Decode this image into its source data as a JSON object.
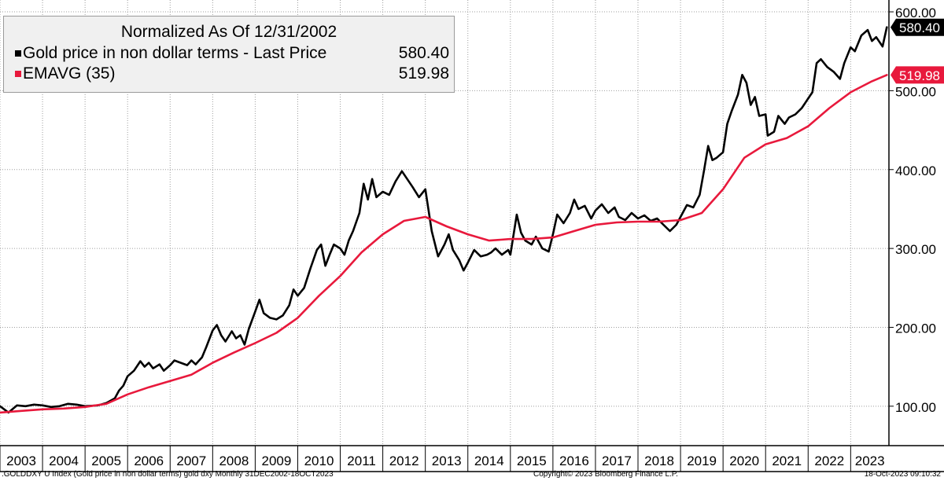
{
  "legend": {
    "title": "Normalized As Of 12/31/2002",
    "entries": [
      {
        "label": "Gold price in non dollar terms - Last Price",
        "value": "580.40",
        "color": "#000000"
      },
      {
        "label": "EMAVG (35)",
        "value": "519.98",
        "color": "#e8193c"
      }
    ]
  },
  "footer": {
    "left": ".GOLDDXY U Index (Gold price in non dollar terms) gold dxy  Monthly 31DEC2002-18OCT2023",
    "center": "Copyright© 2023 Bloomberg Finance L.P.",
    "right": "18-Oct-2023 09:10:32"
  },
  "chart_data": {
    "type": "line",
    "title": "Normalized As Of 12/31/2002",
    "xlabel": "",
    "ylabel": "",
    "x_ticks": [
      "2003",
      "2004",
      "2005",
      "2006",
      "2007",
      "2008",
      "2009",
      "2010",
      "2011",
      "2012",
      "2013",
      "2014",
      "2015",
      "2016",
      "2017",
      "2018",
      "2019",
      "2020",
      "2021",
      "2022",
      "2023"
    ],
    "y_ticks": [
      "100.00",
      "200.00",
      "300.00",
      "400.00",
      "500.00",
      "600.00"
    ],
    "ylim": [
      50,
      615
    ],
    "xlim": [
      2003.0,
      2023.9
    ],
    "grid": true,
    "legend_position": "top-left",
    "last_value_labels": [
      {
        "series": "Gold price in non dollar terms - Last Price",
        "text": "580.40",
        "value": 580.4,
        "bg": "#000000",
        "fg": "#ffffff"
      },
      {
        "series": "EMAVG (35)",
        "text": "519.98",
        "value": 519.98,
        "bg": "#e8193c",
        "fg": "#ffffff"
      }
    ],
    "series": [
      {
        "name": "Gold price in non dollar terms - Last Price",
        "color": "#000000",
        "points": [
          [
            2003.0,
            100
          ],
          [
            2003.2,
            92
          ],
          [
            2003.4,
            101
          ],
          [
            2003.6,
            100
          ],
          [
            2003.8,
            102
          ],
          [
            2004.0,
            101
          ],
          [
            2004.2,
            99
          ],
          [
            2004.4,
            100
          ],
          [
            2004.6,
            103
          ],
          [
            2004.8,
            102
          ],
          [
            2005.0,
            100
          ],
          [
            2005.3,
            101
          ],
          [
            2005.5,
            104
          ],
          [
            2005.7,
            110
          ],
          [
            2005.8,
            120
          ],
          [
            2005.9,
            126
          ],
          [
            2006.0,
            138
          ],
          [
            2006.15,
            145
          ],
          [
            2006.3,
            157
          ],
          [
            2006.4,
            150
          ],
          [
            2006.5,
            155
          ],
          [
            2006.6,
            148
          ],
          [
            2006.75,
            153
          ],
          [
            2006.85,
            145
          ],
          [
            2007.0,
            152
          ],
          [
            2007.1,
            158
          ],
          [
            2007.25,
            155
          ],
          [
            2007.4,
            152
          ],
          [
            2007.5,
            158
          ],
          [
            2007.6,
            153
          ],
          [
            2007.75,
            162
          ],
          [
            2007.85,
            175
          ],
          [
            2008.0,
            196
          ],
          [
            2008.1,
            203
          ],
          [
            2008.2,
            190
          ],
          [
            2008.3,
            182
          ],
          [
            2008.45,
            195
          ],
          [
            2008.55,
            186
          ],
          [
            2008.65,
            190
          ],
          [
            2008.75,
            178
          ],
          [
            2008.85,
            198
          ],
          [
            2009.0,
            220
          ],
          [
            2009.1,
            235
          ],
          [
            2009.2,
            218
          ],
          [
            2009.35,
            212
          ],
          [
            2009.5,
            210
          ],
          [
            2009.65,
            215
          ],
          [
            2009.8,
            228
          ],
          [
            2009.9,
            248
          ],
          [
            2010.0,
            240
          ],
          [
            2010.15,
            250
          ],
          [
            2010.3,
            275
          ],
          [
            2010.45,
            298
          ],
          [
            2010.55,
            305
          ],
          [
            2010.65,
            278
          ],
          [
            2010.75,
            292
          ],
          [
            2010.85,
            305
          ],
          [
            2011.0,
            300
          ],
          [
            2011.1,
            292
          ],
          [
            2011.2,
            310
          ],
          [
            2011.3,
            322
          ],
          [
            2011.45,
            345
          ],
          [
            2011.55,
            382
          ],
          [
            2011.65,
            362
          ],
          [
            2011.75,
            388
          ],
          [
            2011.85,
            365
          ],
          [
            2012.0,
            372
          ],
          [
            2012.15,
            368
          ],
          [
            2012.3,
            385
          ],
          [
            2012.45,
            398
          ],
          [
            2012.55,
            390
          ],
          [
            2012.7,
            378
          ],
          [
            2012.85,
            365
          ],
          [
            2013.0,
            375
          ],
          [
            2013.15,
            322
          ],
          [
            2013.3,
            290
          ],
          [
            2013.45,
            305
          ],
          [
            2013.55,
            318
          ],
          [
            2013.65,
            298
          ],
          [
            2013.8,
            285
          ],
          [
            2013.9,
            272
          ],
          [
            2014.0,
            282
          ],
          [
            2014.15,
            298
          ],
          [
            2014.3,
            290
          ],
          [
            2014.45,
            292
          ],
          [
            2014.55,
            295
          ],
          [
            2014.65,
            300
          ],
          [
            2014.8,
            292
          ],
          [
            2014.95,
            298
          ],
          [
            2015.0,
            292
          ],
          [
            2015.15,
            343
          ],
          [
            2015.25,
            320
          ],
          [
            2015.35,
            310
          ],
          [
            2015.5,
            305
          ],
          [
            2015.6,
            315
          ],
          [
            2015.75,
            300
          ],
          [
            2015.9,
            296
          ],
          [
            2016.0,
            318
          ],
          [
            2016.1,
            343
          ],
          [
            2016.25,
            332
          ],
          [
            2016.4,
            345
          ],
          [
            2016.5,
            362
          ],
          [
            2016.6,
            350
          ],
          [
            2016.75,
            354
          ],
          [
            2016.9,
            338
          ],
          [
            2017.0,
            348
          ],
          [
            2017.15,
            356
          ],
          [
            2017.3,
            345
          ],
          [
            2017.45,
            352
          ],
          [
            2017.55,
            340
          ],
          [
            2017.7,
            336
          ],
          [
            2017.85,
            345
          ],
          [
            2018.0,
            338
          ],
          [
            2018.15,
            342
          ],
          [
            2018.3,
            335
          ],
          [
            2018.45,
            338
          ],
          [
            2018.6,
            330
          ],
          [
            2018.75,
            322
          ],
          [
            2018.9,
            330
          ],
          [
            2019.0,
            340
          ],
          [
            2019.15,
            355
          ],
          [
            2019.3,
            352
          ],
          [
            2019.45,
            368
          ],
          [
            2019.55,
            398
          ],
          [
            2019.65,
            430
          ],
          [
            2019.75,
            412
          ],
          [
            2019.85,
            415
          ],
          [
            2020.0,
            422
          ],
          [
            2020.1,
            458
          ],
          [
            2020.2,
            474
          ],
          [
            2020.35,
            495
          ],
          [
            2020.45,
            520
          ],
          [
            2020.55,
            510
          ],
          [
            2020.65,
            482
          ],
          [
            2020.75,
            492
          ],
          [
            2020.85,
            468
          ],
          [
            2021.0,
            470
          ],
          [
            2021.05,
            443
          ],
          [
            2021.2,
            448
          ],
          [
            2021.3,
            468
          ],
          [
            2021.45,
            458
          ],
          [
            2021.55,
            466
          ],
          [
            2021.7,
            470
          ],
          [
            2021.85,
            478
          ],
          [
            2022.0,
            490
          ],
          [
            2022.1,
            498
          ],
          [
            2022.2,
            535
          ],
          [
            2022.3,
            540
          ],
          [
            2022.45,
            530
          ],
          [
            2022.6,
            524
          ],
          [
            2022.75,
            515
          ],
          [
            2022.85,
            535
          ],
          [
            2023.0,
            555
          ],
          [
            2023.1,
            550
          ],
          [
            2023.25,
            570
          ],
          [
            2023.4,
            577
          ],
          [
            2023.5,
            563
          ],
          [
            2023.6,
            568
          ],
          [
            2023.75,
            556
          ],
          [
            2023.85,
            580.4
          ]
        ]
      },
      {
        "name": "EMAVG (35)",
        "color": "#e8193c",
        "points": [
          [
            2003.0,
            92
          ],
          [
            2003.5,
            94
          ],
          [
            2004.0,
            96
          ],
          [
            2004.5,
            97
          ],
          [
            2005.0,
            99
          ],
          [
            2005.5,
            103
          ],
          [
            2006.0,
            115
          ],
          [
            2006.5,
            124
          ],
          [
            2007.0,
            132
          ],
          [
            2007.5,
            140
          ],
          [
            2008.0,
            155
          ],
          [
            2008.5,
            168
          ],
          [
            2009.0,
            180
          ],
          [
            2009.5,
            193
          ],
          [
            2010.0,
            212
          ],
          [
            2010.5,
            240
          ],
          [
            2011.0,
            265
          ],
          [
            2011.5,
            295
          ],
          [
            2012.0,
            318
          ],
          [
            2012.5,
            335
          ],
          [
            2013.0,
            340
          ],
          [
            2013.5,
            328
          ],
          [
            2014.0,
            318
          ],
          [
            2014.5,
            310
          ],
          [
            2015.0,
            312
          ],
          [
            2015.5,
            312
          ],
          [
            2016.0,
            314
          ],
          [
            2016.5,
            322
          ],
          [
            2017.0,
            330
          ],
          [
            2017.5,
            333
          ],
          [
            2018.0,
            334
          ],
          [
            2018.5,
            334
          ],
          [
            2019.0,
            336
          ],
          [
            2019.5,
            345
          ],
          [
            2020.0,
            375
          ],
          [
            2020.5,
            415
          ],
          [
            2021.0,
            432
          ],
          [
            2021.5,
            440
          ],
          [
            2022.0,
            455
          ],
          [
            2022.5,
            478
          ],
          [
            2023.0,
            498
          ],
          [
            2023.5,
            512
          ],
          [
            2023.85,
            519.98
          ]
        ]
      }
    ]
  }
}
